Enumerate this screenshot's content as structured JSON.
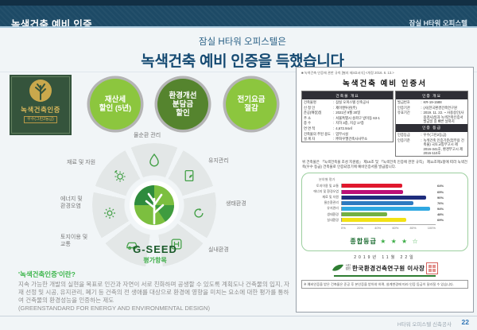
{
  "header": {
    "title": "녹색건축 예비 인증",
    "project": "잠실 H타워 오피스텔"
  },
  "headline": {
    "line1": "잠실 H타워 오피스텔은",
    "line2": "녹색건축 예비 인증을 득했습니다"
  },
  "plaque": {
    "title": "녹색건축인증",
    "grade": "우수(그린2등급)"
  },
  "benefits": [
    {
      "label": "재산세\n할인 (5년)",
      "color": "#8cc63e"
    },
    {
      "label": "환경개선\n분담금\n할인",
      "color": "#55842e"
    },
    {
      "label": "전기요금\n절감",
      "color": "#8cc63e"
    }
  ],
  "wheel": {
    "center_title": "G-SEED",
    "center_subtitle": "평가항목",
    "labels": {
      "top": "물순환 관리",
      "top_right": "유지관리",
      "right": "생태환경",
      "bottom_right": "실내환경",
      "bottom_left": "토지이용 및\n교통",
      "left": "에너지 및\n환경오염",
      "top_left": "재료 및 자원"
    }
  },
  "definition": {
    "title": "'녹색건축인증'이란?",
    "body": "지속 가능한 개발의 실현을 목표로 인간과 자연이 서로 친화하며 공생할 수 있도록 계획도나 건축물의 입지, 자재 선정 및 시공, 유지관리, 폐기 등 건축의 전 생애를 대상으로 환경에 영향을 미치는 요소에 대한 평가를 통하여 건축물의 환경성능을 인증하는 제도",
    "body_en": "(GREENSTANDARD FOR ENERGY AND ENVIRONMENTAL DESIGN)"
  },
  "certificate": {
    "regulation_note": "■ 녹색건축 인증에 관한 규칙 [별지 제4호서식] <개정 2016. 6. 13.>",
    "title": "녹색건축 예비 인증서",
    "overview": {
      "header": "건축물 개요",
      "rows": [
        [
          "건축물명",
          "잠실 오피스텔 신축공사"
        ],
        [
          "신 청 인",
          "제이앤투윈(주)"
        ],
        [
          "준공(예정)일",
          "2021년 9월 30일"
        ],
        [
          "주 소",
          "서울특별시 송파구 방이동 63-1"
        ],
        [
          "층 수",
          "지하 3층, 지상 17층"
        ],
        [
          "연 면 적",
          "4,672.94㎡"
        ],
        [
          "건축물의 주된 용도",
          "업무시설"
        ],
        [
          "설 계 자",
          "㈜하우멜건축사사무소"
        ]
      ]
    },
    "cert_info": {
      "header": "인증 개요",
      "rows": [
        [
          "발급번호",
          "KR-19-1588"
        ],
        [
          "인증기관",
          "(사)한국환경건축연구원"
        ],
        [
          "유효기간",
          "2019. 11. 22. ~ 사용승인(사용검사)일과 녹색건축인증서 발급일 중 빠른 날까지"
        ]
      ]
    },
    "grade_info": {
      "header": "인증 등급",
      "rows": [
        [
          "인증등급",
          "우수(그린2등급)"
        ],
        [
          "인증기준",
          "녹색건축 인증기준(업무용 건축물) 국토교통부고시 제2016-341호, 환경부고시 제2016-110호"
        ]
      ]
    },
    "statement": "위 건축물은 「녹색건축물 조성 지원법」 제16조 및 「녹색건축 인증에 관한 규칙」 제11조제1항에 따라 녹색건축(우수 등급) 건축물로 인증되었기에 예비인증서를 발급합니다.",
    "overall_grade_label": "종합등급",
    "stars": "★ ★ ★ ☆",
    "date": "2019년  11월  22일",
    "issuer_prefix": "사단\n법인",
    "issuer": "한국환경건축연구원 이사장",
    "footnote": "※ 예비인증을 받은 건축물은 준공 후 본인증을 받아야 하며, 설계변경에 따라 인증 등급이 달라질 수 있습니다."
  },
  "chart_data": {
    "type": "bar",
    "orientation": "horizontal",
    "title": "분야별 평가",
    "categories": [
      "토지이용 및 교통",
      "에너지 및 환경오염",
      "재료 및 자원",
      "물순환관리",
      "유지관리",
      "생태환경",
      "실내환경"
    ],
    "values": [
      64,
      65,
      90,
      76,
      94,
      48,
      69
    ],
    "value_labels": [
      "64%",
      "65%",
      "90%",
      "76%",
      "94%",
      "48%",
      "69%"
    ],
    "bar_colors": [
      "#e0182d",
      "#bc1077",
      "#1e2d7d",
      "#2e7bc0",
      "#2fa8e1",
      "#74b043",
      "#f2e214"
    ],
    "xlim": [
      0,
      100
    ],
    "x_ticks": [
      "0%",
      "20%",
      "40%",
      "60%",
      "80%",
      "100%"
    ],
    "legend_position": "none",
    "grid": false
  },
  "footer": {
    "project": "H타워 오피스텔 신축공사",
    "page": "22"
  }
}
